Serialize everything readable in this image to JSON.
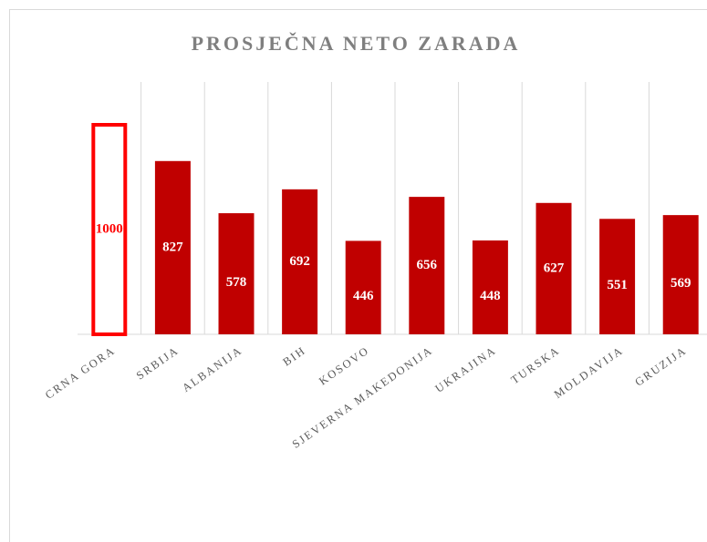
{
  "chart_data": {
    "type": "bar",
    "title": "PROSJEČNA NETO ZARADA",
    "categories": [
      "CRNA GORA",
      "SRBIJA",
      "ALBANIJA",
      "BIH",
      "KOSOVO",
      "SJEVERNA MAKEDONIJA",
      "UKRAJINA",
      "TURSKA",
      "MOLDAVIJA",
      "GRUZIJA"
    ],
    "values": [
      1000,
      827,
      578,
      692,
      446,
      656,
      448,
      627,
      551,
      569
    ],
    "color": "#c00000",
    "highlight_index": 0,
    "highlight_color": "#ff0000",
    "ylim": [
      0,
      1000
    ],
    "grid": true
  }
}
